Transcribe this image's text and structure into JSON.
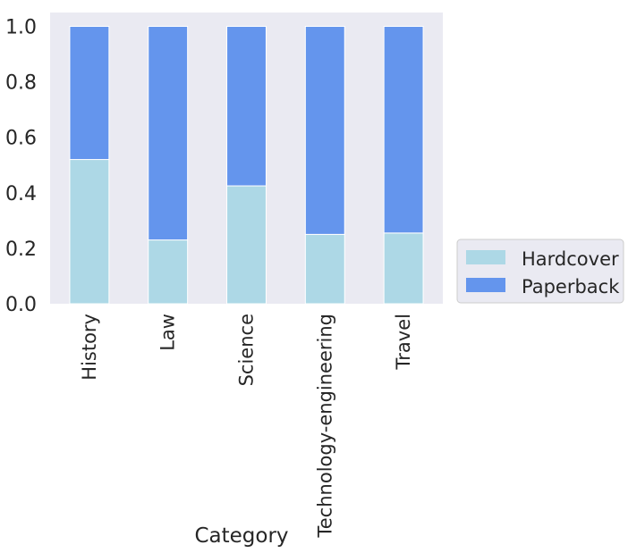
{
  "chart_data": {
    "type": "bar",
    "stacked": true,
    "title": "",
    "xlabel": "Category",
    "ylabel": "",
    "ylim": [
      0,
      1.05
    ],
    "y_ticks": [
      "0.0",
      "0.2",
      "0.4",
      "0.6",
      "0.8",
      "1.0"
    ],
    "grid": false,
    "legend_position": "right, lower",
    "categories": [
      "History",
      "Law",
      "Science",
      "Technology-engineering",
      "Travel"
    ],
    "series": [
      {
        "name": "Hardcover",
        "color": "#add8e6",
        "values": [
          0.52,
          0.23,
          0.425,
          0.25,
          0.255
        ]
      },
      {
        "name": "Paperback",
        "color": "#6495ed",
        "values": [
          0.48,
          0.77,
          0.575,
          0.75,
          0.745
        ]
      }
    ],
    "background_color": "#eaeaf2"
  }
}
